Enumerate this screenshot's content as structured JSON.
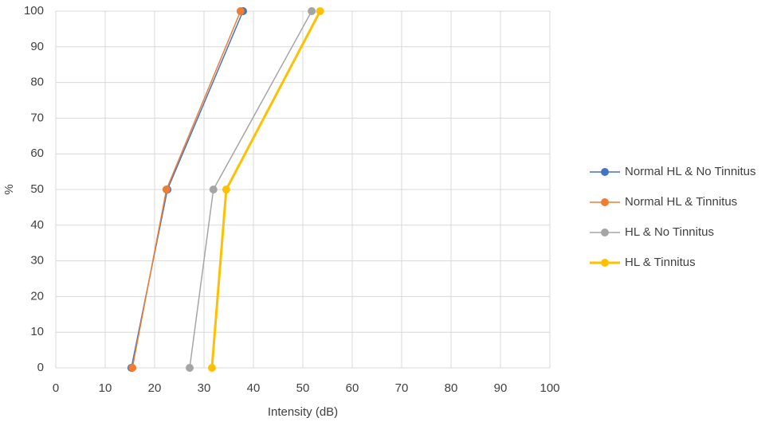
{
  "chart_data": {
    "type": "line",
    "xlabel": "Intensity (dB)",
    "ylabel": "%",
    "series": [
      {
        "name": "Normal HL & No Tinnitus",
        "color": "#4472c4",
        "line_width": 1.5,
        "x": [
          15.3,
          22.6,
          37.9
        ],
        "values": [
          0,
          50,
          100
        ]
      },
      {
        "name": "Normal HL & Tinnitus",
        "color": "#ed7d31",
        "line_width": 1.5,
        "x": [
          15.5,
          22.4,
          37.4
        ],
        "values": [
          0,
          50,
          100
        ]
      },
      {
        "name": "HL & No Tinnitus",
        "color": "#a5a5a5",
        "line_width": 1.5,
        "x": [
          27.1,
          31.9,
          51.8
        ],
        "values": [
          0,
          50,
          100
        ]
      },
      {
        "name": "HL & Tinnitus",
        "color": "#ffc000",
        "line_width": 3,
        "x": [
          31.6,
          34.5,
          53.5
        ],
        "values": [
          0,
          50,
          100
        ]
      }
    ],
    "xlim": [
      0,
      100
    ],
    "xticks": [
      0,
      10,
      20,
      30,
      40,
      50,
      60,
      70,
      80,
      90,
      100
    ],
    "ylim": [
      0,
      100
    ],
    "yticks": [
      0,
      10,
      20,
      30,
      40,
      50,
      60,
      70,
      80,
      90,
      100
    ],
    "grid": true,
    "legend": "right"
  }
}
